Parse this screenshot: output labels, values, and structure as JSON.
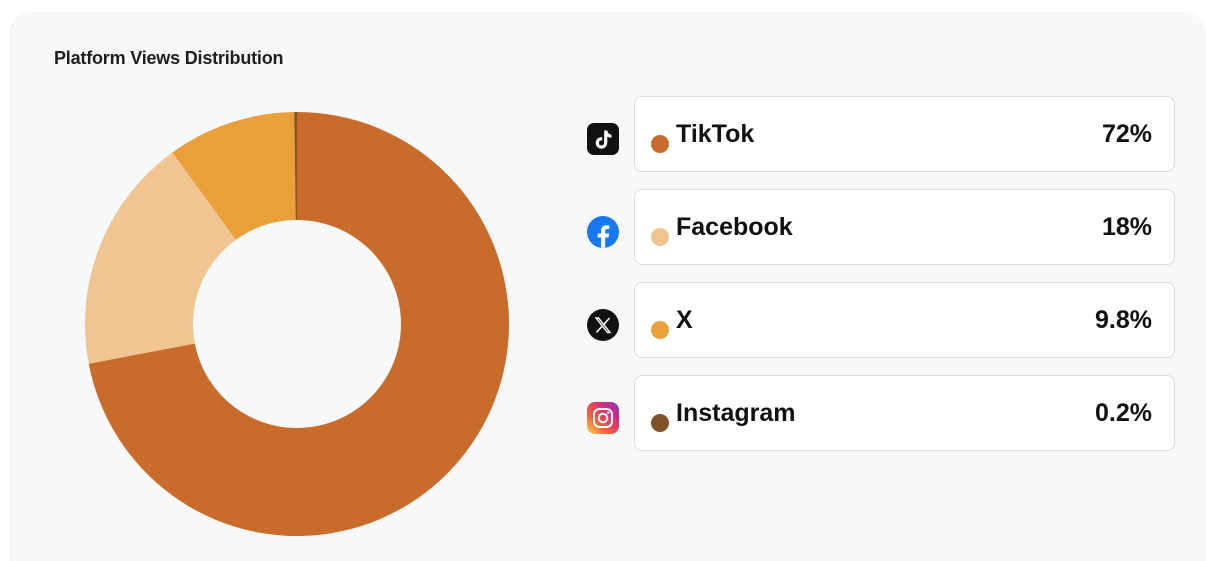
{
  "header": {
    "title": "Platform Views Distribution"
  },
  "chart_data": {
    "type": "pie",
    "donut": true,
    "categories": [
      "TikTok",
      "Facebook",
      "X",
      "Instagram"
    ],
    "values": [
      72,
      18,
      9.8,
      0.2
    ],
    "colors": [
      "#c96c2b",
      "#f0c591",
      "#e9a03b",
      "#7f5327"
    ],
    "legend_labels": [
      "72%",
      "18%",
      "9.8%",
      "0.2%"
    ],
    "legend_placement": "right"
  },
  "legend": {
    "items": [
      {
        "label": "TikTok",
        "value": "72%",
        "color": "#c96c2b",
        "icon": "tiktok-icon"
      },
      {
        "label": "Facebook",
        "value": "18%",
        "color": "#f0c591",
        "icon": "facebook-icon"
      },
      {
        "label": "X",
        "value": "9.8%",
        "color": "#e9a03b",
        "icon": "x-icon"
      },
      {
        "label": "Instagram",
        "value": "0.2%",
        "color": "#7f5327",
        "icon": "instagram-icon"
      }
    ]
  }
}
